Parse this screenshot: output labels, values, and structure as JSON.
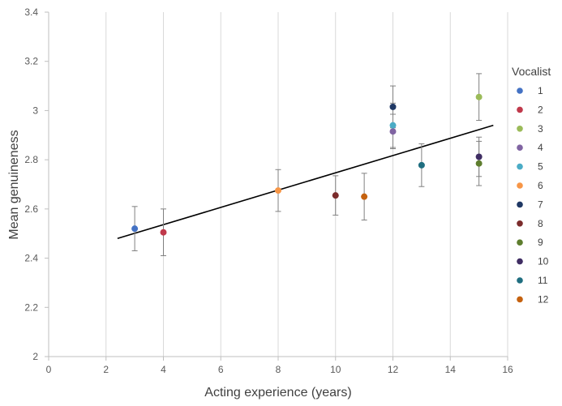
{
  "chart_data": {
    "type": "scatter",
    "title": "",
    "xlabel": "Acting experience (years)",
    "ylabel": "Mean genuineness",
    "xlim": [
      0,
      16
    ],
    "ylim": [
      2,
      3.4
    ],
    "xticks": [
      0,
      2,
      4,
      6,
      8,
      10,
      12,
      14,
      16
    ],
    "yticks": [
      2,
      2.2,
      2.4,
      2.6,
      2.8,
      3,
      3.2,
      3.4
    ],
    "xtick_labels": [
      "0",
      "2",
      "4",
      "6",
      "8",
      "10",
      "12",
      "14",
      "16"
    ],
    "ytick_labels": [
      "2",
      "2.2",
      "2.4",
      "2.6",
      "2.8",
      "3",
      "3.2",
      "3.4"
    ],
    "grid": "vertical",
    "legend": {
      "title": "Vocalist",
      "placement": "right"
    },
    "series": [
      {
        "name": "1",
        "color": "#4472C4",
        "x": 3,
        "y": 2.52,
        "err": 0.09
      },
      {
        "name": "2",
        "color": "#C0394B",
        "x": 4,
        "y": 2.505,
        "err": 0.095
      },
      {
        "name": "3",
        "color": "#9BBB59",
        "x": 15,
        "y": 3.055,
        "err": 0.095
      },
      {
        "name": "4",
        "color": "#8064A2",
        "x": 12,
        "y": 2.915,
        "err": 0.07
      },
      {
        "name": "5",
        "color": "#4BACC6",
        "x": 12,
        "y": 2.94,
        "err": 0.09
      },
      {
        "name": "6",
        "color": "#F79646",
        "x": 8,
        "y": 2.675,
        "err": 0.085
      },
      {
        "name": "7",
        "color": "#1F3864",
        "x": 12,
        "y": 3.015,
        "err": 0.085
      },
      {
        "name": "8",
        "color": "#7B2C2C",
        "x": 10,
        "y": 2.655,
        "err": 0.08
      },
      {
        "name": "9",
        "color": "#5E7D2E",
        "x": 15,
        "y": 2.785,
        "err": 0.09
      },
      {
        "name": "10",
        "color": "#3F2D63",
        "x": 15,
        "y": 2.812,
        "err": 0.08
      },
      {
        "name": "11",
        "color": "#1F6E80",
        "x": 13,
        "y": 2.778,
        "err": 0.087
      },
      {
        "name": "12",
        "color": "#C5620F",
        "x": 11,
        "y": 2.65,
        "err": 0.095
      }
    ],
    "trendline": {
      "x1": 2.4,
      "y1": 2.48,
      "x2": 15.5,
      "y2": 2.94,
      "color": "#000000"
    }
  }
}
